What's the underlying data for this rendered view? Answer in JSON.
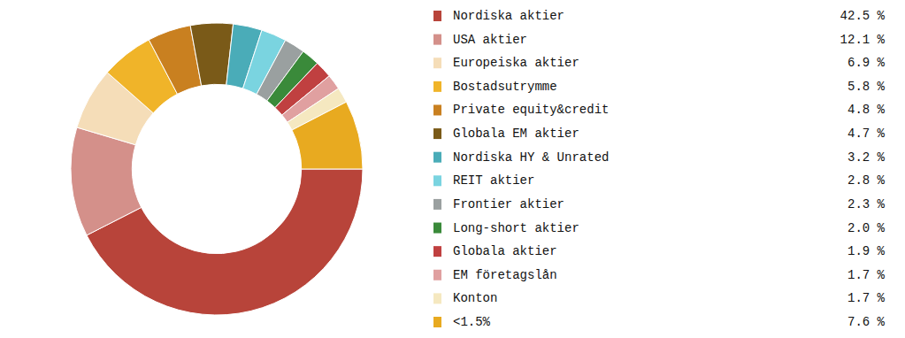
{
  "chart_data": {
    "type": "donut",
    "categories": [
      "Nordiska aktier",
      "USA aktier",
      "Europeiska aktier",
      "Bostadsutrymme",
      "Private equity&credit",
      "Globala EM aktier",
      "Nordiska HY & Unrated",
      "REIT aktier",
      "Frontier aktier",
      "Long-short aktier",
      "Globala aktier",
      "EM företagslån",
      "Konton",
      "<1.5%"
    ],
    "values": [
      42.5,
      12.1,
      6.9,
      5.8,
      4.8,
      4.7,
      3.2,
      2.8,
      2.3,
      2.0,
      1.9,
      1.7,
      1.7,
      7.6
    ],
    "value_labels": [
      "42.5 %",
      "12.1 %",
      "6.9 %",
      "5.8 %",
      "4.8 %",
      "4.7 %",
      "3.2 %",
      "2.8 %",
      "2.3 %",
      "2.0 %",
      "1.9 %",
      "1.7 %",
      "1.7 %",
      "7.6 %"
    ],
    "colors": [
      "#b8443a",
      "#d4908a",
      "#f5ddb8",
      "#f0b429",
      "#c98020",
      "#7a5a18",
      "#4aacb8",
      "#7ad4e0",
      "#9aA0a0",
      "#3a8a3a",
      "#c04040",
      "#e0a0a0",
      "#f5e8c0",
      "#e8aa20"
    ],
    "legend": "right"
  }
}
